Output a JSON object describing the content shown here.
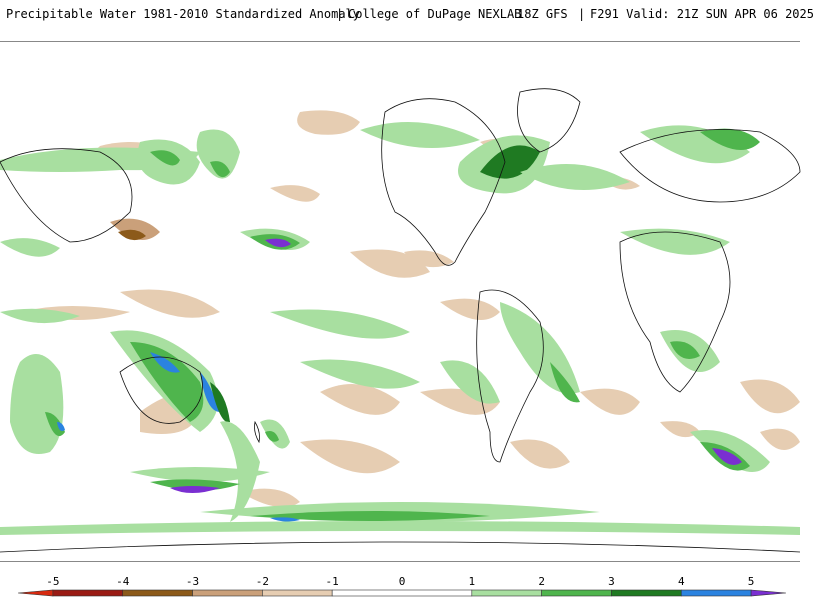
{
  "header": {
    "title": "Precipitable Water 1981-2010 Standardized Anomaly",
    "source": "College of DuPage NEXLAB",
    "run": "18Z GFS",
    "valid": "F291 Valid: 21Z SUN APR 06 2025"
  },
  "legend": {
    "tick_labels": [
      "-5",
      "-4",
      "-3",
      "-2",
      "-1",
      "0",
      "1",
      "2",
      "3",
      "4",
      "5"
    ],
    "bins": [
      {
        "from": -5.5,
        "to": -5,
        "color": "#d62a10"
      },
      {
        "from": -5,
        "to": -4,
        "color": "#9a1b14"
      },
      {
        "from": -4,
        "to": -3,
        "color": "#8c5a1a"
      },
      {
        "from": -3,
        "to": -2,
        "color": "#caa07a"
      },
      {
        "from": -2,
        "to": -1,
        "color": "#e6cdb2"
      },
      {
        "from": -1,
        "to": 1,
        "color": "#ffffff"
      },
      {
        "from": 1,
        "to": 2,
        "color": "#a8dfa0"
      },
      {
        "from": 2,
        "to": 3,
        "color": "#4fb54d"
      },
      {
        "from": 3,
        "to": 4,
        "color": "#1f7a22"
      },
      {
        "from": 4,
        "to": 5,
        "color": "#2b83e0"
      },
      {
        "from": 5,
        "to": 5.5,
        "color": "#7a2fd1"
      }
    ]
  },
  "map": {
    "projection": "global cylindrical",
    "palette": {
      "dry_light": "#e6cdb2",
      "dry_medium": "#d2a882",
      "dry_dark": "#8c5a1a",
      "wet_light": "#a8dfa0",
      "wet_medium": "#4fb54d",
      "wet_dark": "#1f7a22",
      "wet_blue": "#2b83e0",
      "wet_purple": "#7a2fd1",
      "coastline": "#111111"
    }
  }
}
